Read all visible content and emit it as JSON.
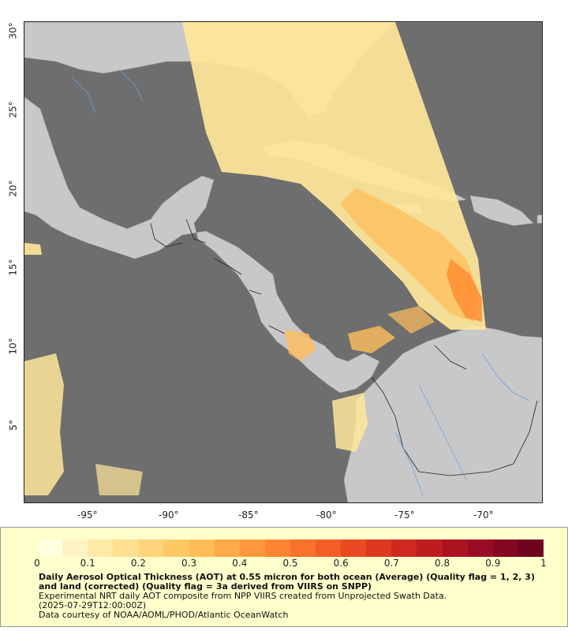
{
  "map": {
    "x_ticks": [
      "-95°",
      "-90°",
      "-85°",
      "-80°",
      "-75°",
      "-70°"
    ],
    "y_ticks": [
      "30°",
      "25°",
      "20°",
      "15°",
      "10°",
      "5°"
    ],
    "colors": {
      "ocean_no_data": "#6e6e6e",
      "land": "#c8c8c8",
      "aot_low": "#ffe79a",
      "aot_mid": "#ffbe5c",
      "aot_high": "#ff8a2e"
    }
  },
  "legend": {
    "tick_labels": [
      "0",
      "0.1",
      "0.2",
      "0.3",
      "0.4",
      "0.5",
      "0.6",
      "0.7",
      "0.8",
      "0.9",
      "1"
    ],
    "colormap": [
      "#ffffe0",
      "#fff3c4",
      "#ffeaa8",
      "#ffe090",
      "#ffd47a",
      "#ffc866",
      "#ffbb56",
      "#ffaa48",
      "#ff983c",
      "#fd8532",
      "#f9722b",
      "#f35e26",
      "#ea4a22",
      "#de3820",
      "#cf281f",
      "#bf1c20",
      "#ad1221",
      "#990b22",
      "#850622",
      "#700222"
    ],
    "title": "Daily Aerosol Optical Thickness (AOT) at 0.55 micron for both ocean (Average) (Quality flag = 1, 2, 3) and land (corrected) (Quality flag = 3a derived from VIIRS on SNPP)",
    "line1": "Experimental NRT daily AOT composite from NPP VIIRS created from Unprojected Swath Data.",
    "line2": "(2025-07-29T12:00:00Z)",
    "line3": "Data courtesy of NOAA/AOML/PHOD/Atlantic OceanWatch"
  }
}
